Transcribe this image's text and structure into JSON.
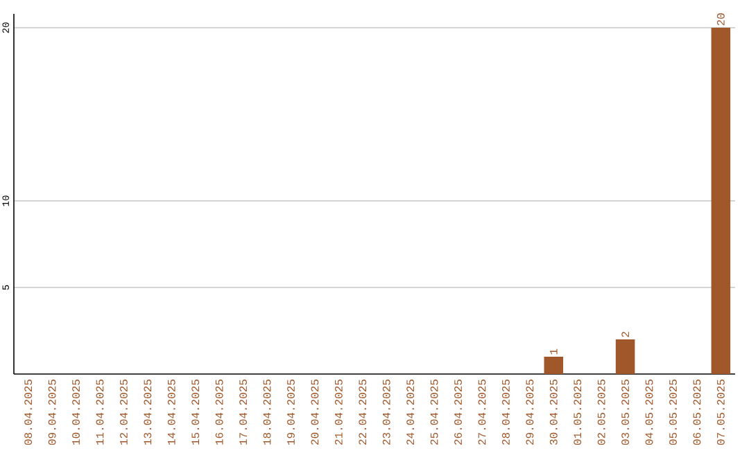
{
  "chart_data": {
    "type": "bar",
    "categories": [
      "08.04.2025",
      "09.04.2025",
      "10.04.2025",
      "11.04.2025",
      "12.04.2025",
      "13.04.2025",
      "14.04.2025",
      "15.04.2025",
      "16.04.2025",
      "17.04.2025",
      "18.04.2025",
      "19.04.2025",
      "20.04.2025",
      "21.04.2025",
      "22.04.2025",
      "23.04.2025",
      "24.04.2025",
      "25.04.2025",
      "26.04.2025",
      "27.04.2025",
      "28.04.2025",
      "29.04.2025",
      "30.04.2025",
      "01.05.2025",
      "02.05.2025",
      "03.05.2025",
      "04.05.2025",
      "05.05.2025",
      "06.05.2025",
      "07.05.2025"
    ],
    "values": [
      0,
      0,
      0,
      0,
      0,
      0,
      0,
      0,
      0,
      0,
      0,
      0,
      0,
      0,
      0,
      0,
      0,
      0,
      0,
      0,
      0,
      0,
      1,
      0,
      0,
      2,
      0,
      0,
      0,
      20
    ],
    "value_labels": [
      null,
      null,
      null,
      null,
      null,
      null,
      null,
      null,
      null,
      null,
      null,
      null,
      null,
      null,
      null,
      null,
      null,
      null,
      null,
      null,
      null,
      null,
      "1",
      null,
      null,
      "2",
      null,
      null,
      null,
      "20"
    ],
    "color": "#a0582a",
    "ylim": [
      0,
      20.8
    ],
    "yticks": [
      5,
      10,
      20
    ],
    "grid": "y"
  }
}
